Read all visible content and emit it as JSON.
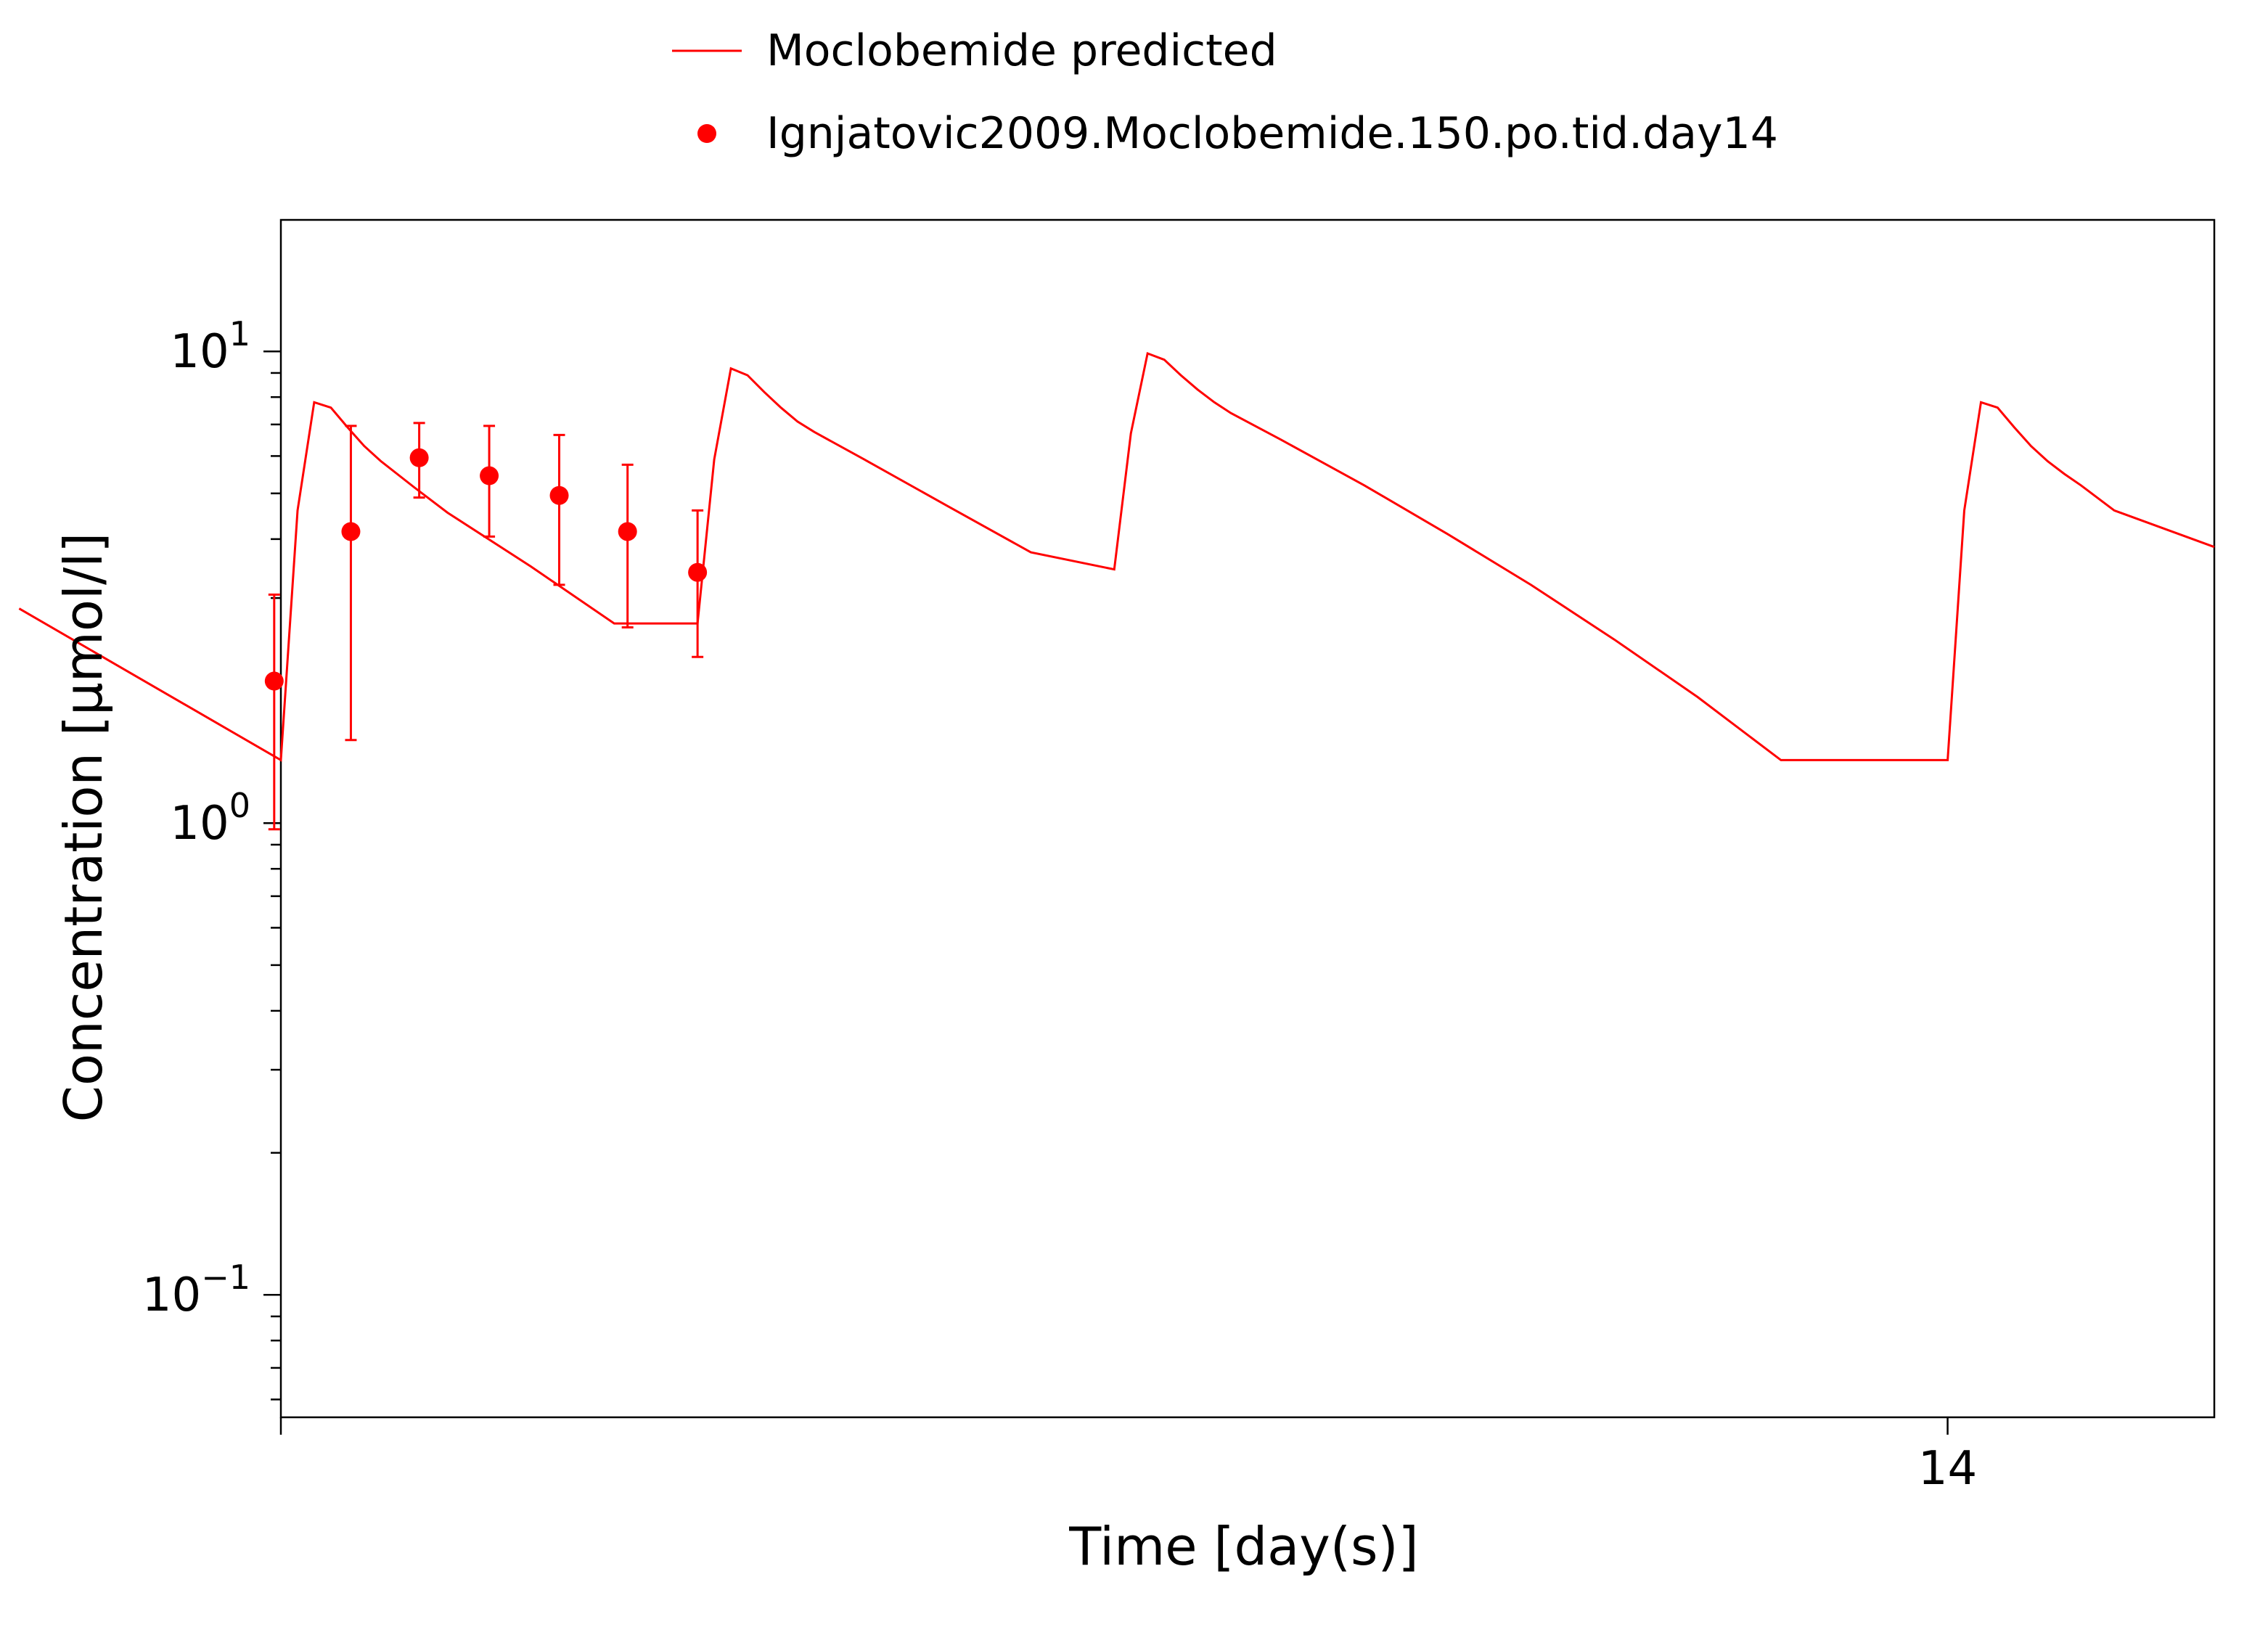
{
  "chart_data": {
    "type": "line",
    "xlabel": "Time [day(s)]",
    "ylabel": "Concentration [µmol/l]",
    "y_scale": "log",
    "ylim": [
      0.055,
      19
    ],
    "xlim": [
      13.0,
      14.16
    ],
    "x_ticks": [
      {
        "value": 13.0,
        "label": ""
      },
      {
        "value": 14.0,
        "label": "14"
      }
    ],
    "y_ticks": [
      {
        "value": 0.1,
        "base": "10",
        "exp": "−1"
      },
      {
        "value": 1,
        "base": "10",
        "exp": "0"
      },
      {
        "value": 10,
        "base": "10",
        "exp": "1"
      }
    ],
    "grid": false,
    "legend_position": "top-center",
    "series": [
      {
        "name": "Moclobemide predicted",
        "kind": "line",
        "color": "#ff0000",
        "x": [
          12.843,
          13.0,
          13.01,
          13.02,
          13.03,
          13.04,
          13.05,
          13.06,
          13.08,
          13.1,
          13.15,
          13.2,
          13.25,
          13.26,
          13.27,
          13.28,
          13.29,
          13.3,
          13.31,
          13.32,
          13.35,
          13.4,
          13.45,
          13.5,
          13.51,
          13.52,
          13.53,
          13.54,
          13.55,
          13.56,
          13.57,
          13.6,
          13.65,
          13.7,
          13.75,
          13.8,
          13.85,
          13.9,
          13.95,
          14.0,
          14.01,
          14.02,
          14.03,
          14.04,
          14.05,
          14.06,
          14.07,
          14.08,
          14.1,
          14.16
        ],
        "y": [
          2.85,
          1.36,
          4.6,
          7.8,
          7.6,
          6.9,
          6.3,
          5.85,
          5.15,
          4.55,
          3.5,
          2.65,
          2.65,
          5.9,
          9.2,
          8.9,
          8.2,
          7.6,
          7.1,
          6.75,
          5.9,
          4.7,
          3.75,
          3.45,
          6.7,
          9.9,
          9.6,
          8.9,
          8.3,
          7.8,
          7.4,
          6.5,
          5.2,
          4.1,
          3.2,
          2.45,
          1.85,
          1.36,
          1.36,
          1.36,
          4.6,
          7.8,
          7.6,
          6.9,
          6.3,
          5.85,
          5.5,
          5.2,
          4.6,
          3.85
        ]
      },
      {
        "name": "Ignjatovic2009.Moclobemide.150.po.tid.day14",
        "kind": "scatter",
        "color": "#ff0000",
        "x": [
          12.996,
          13.042,
          13.083,
          13.125,
          13.167,
          13.208,
          13.25
        ],
        "y": [
          2.0,
          4.15,
          5.95,
          5.45,
          4.95,
          4.15,
          3.4
        ],
        "y_err_low": [
          0.97,
          1.5,
          4.9,
          4.05,
          3.2,
          2.6,
          2.25
        ],
        "y_err_high": [
          3.05,
          6.95,
          7.05,
          6.95,
          6.65,
          5.75,
          4.6
        ]
      }
    ]
  }
}
